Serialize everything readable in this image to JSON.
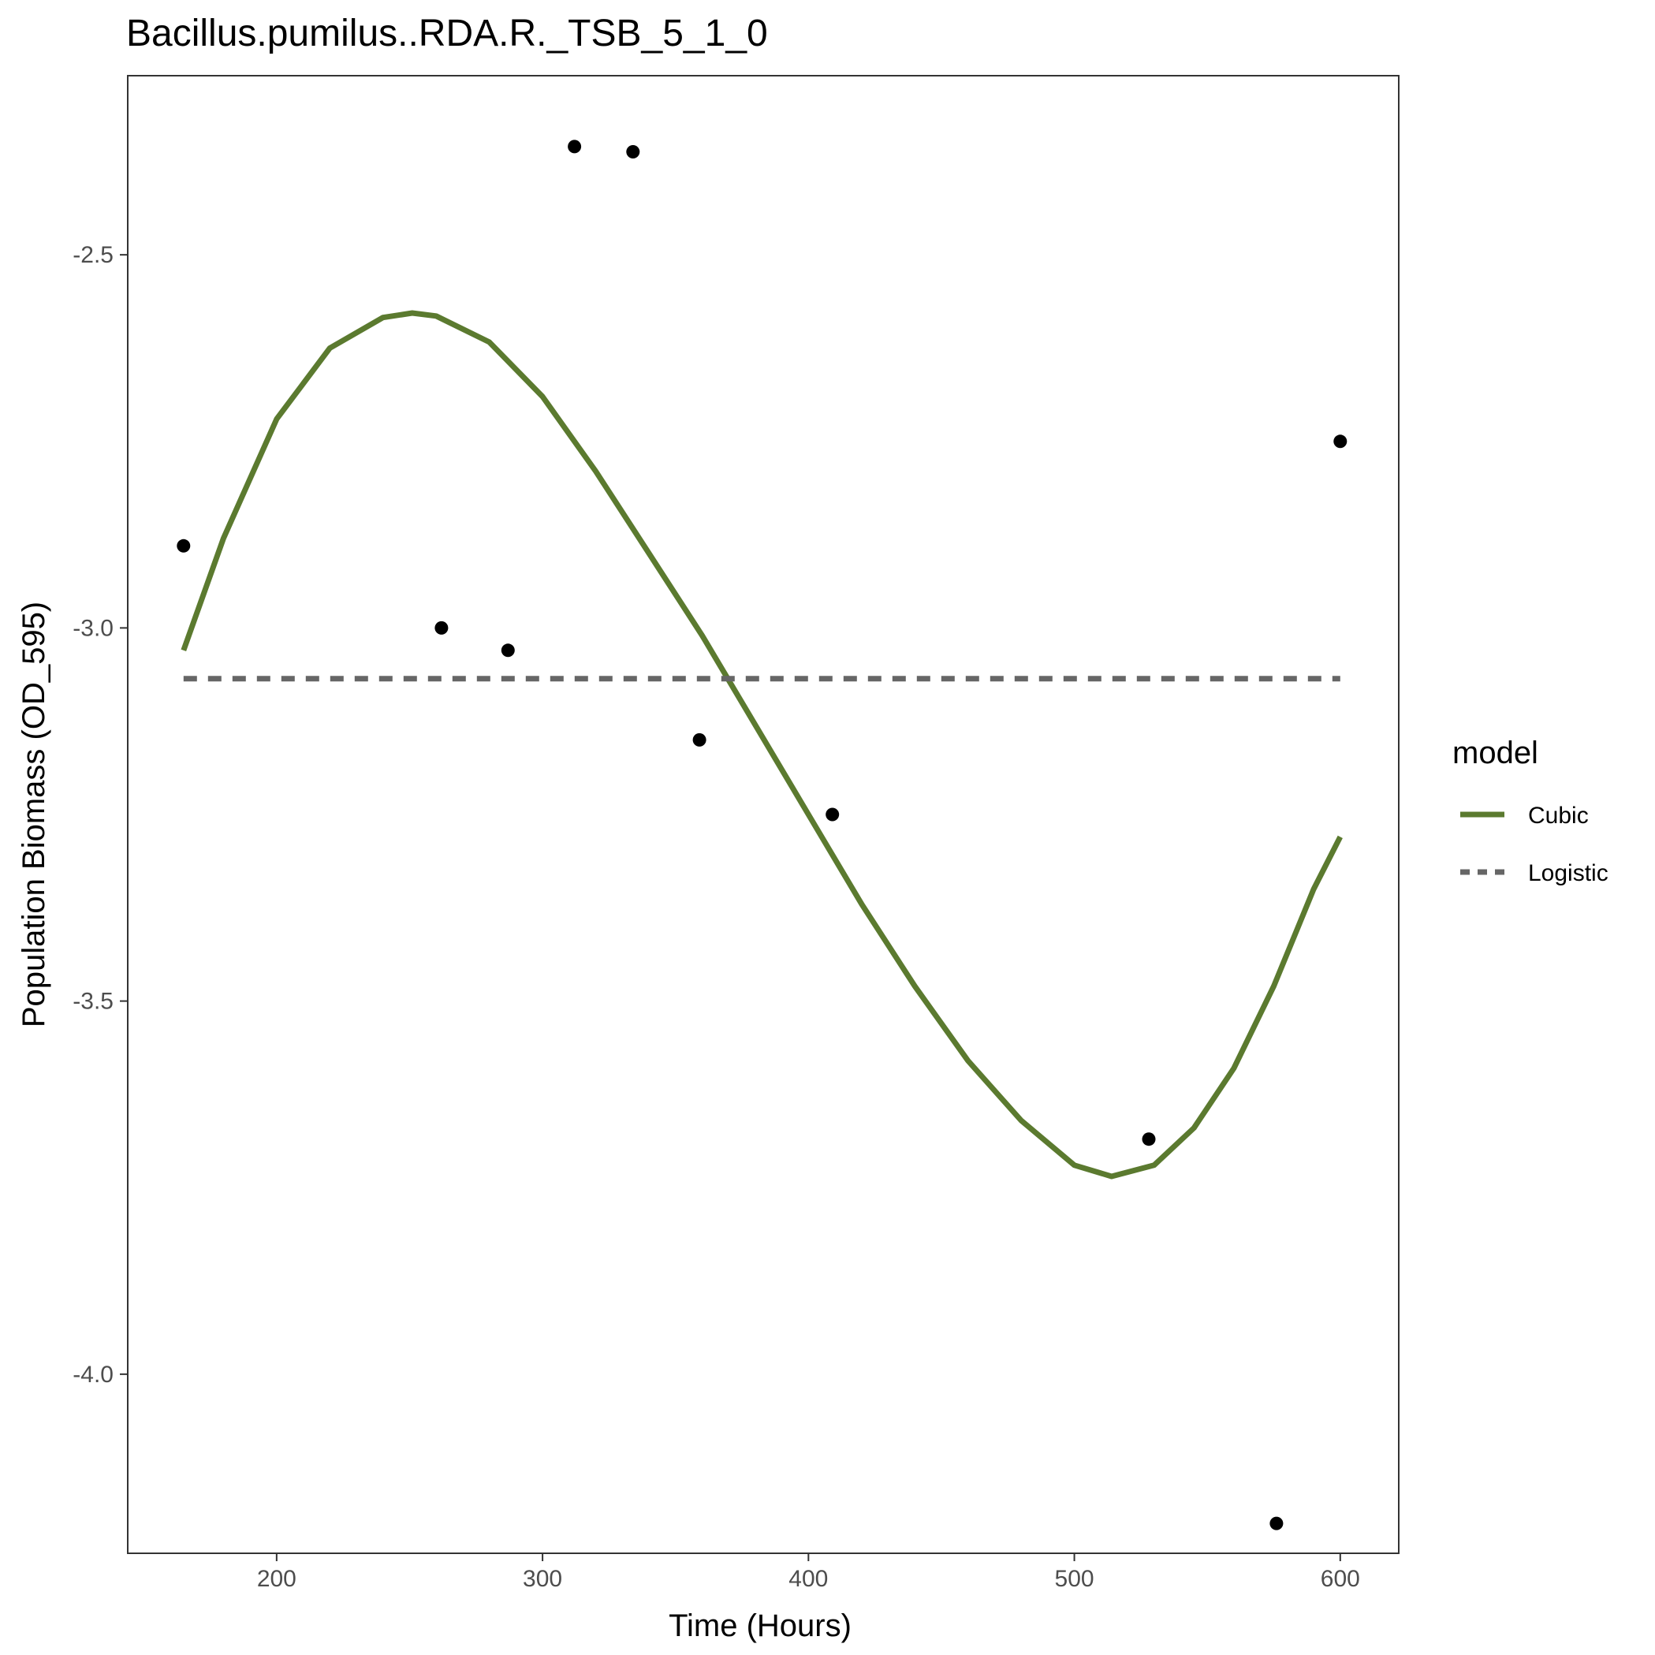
{
  "chart_data": {
    "type": "line",
    "title": "Bacillus.pumilus..RDA.R._TSB_5_1_0",
    "xlabel": "Time (Hours)",
    "ylabel": "Population Biomass (OD_595)",
    "xlim": [
      144,
      622
    ],
    "ylim": [
      -4.24,
      -2.26
    ],
    "xticks": [
      200,
      300,
      400,
      500,
      600
    ],
    "xtick_labels": [
      "200",
      "300",
      "400",
      "500",
      "600"
    ],
    "yticks": [
      -4.0,
      -3.5,
      -3.0,
      -2.5
    ],
    "ytick_labels": [
      "-4.0",
      "-3.5",
      "-3.0",
      "-2.5"
    ],
    "grid": false,
    "legend": {
      "title": "model",
      "position": "right",
      "entries": [
        {
          "label": "Cubic",
          "color": "#5b7a2f",
          "style": "solid"
        },
        {
          "label": "Logistic",
          "color": "#666666",
          "style": "dashed"
        }
      ]
    },
    "points": {
      "color": "#000000",
      "x": [
        165,
        262,
        287,
        312,
        334,
        359,
        409,
        528,
        576,
        600
      ],
      "y": [
        -2.89,
        -3.0,
        -3.03,
        -2.355,
        -2.362,
        -3.15,
        -3.25,
        -3.685,
        -4.2,
        -2.75
      ]
    },
    "series": [
      {
        "name": "Cubic",
        "color": "#5b7a2f",
        "style": "solid",
        "x": [
          165,
          180,
          200,
          220,
          240,
          251,
          260,
          280,
          300,
          320,
          340,
          360,
          380,
          400,
          420,
          440,
          460,
          480,
          500,
          514,
          530,
          545,
          560,
          575,
          590,
          600
        ],
        "y": [
          -3.03,
          -2.88,
          -2.72,
          -2.625,
          -2.584,
          -2.578,
          -2.582,
          -2.617,
          -2.69,
          -2.79,
          -2.9,
          -3.01,
          -3.13,
          -3.25,
          -3.37,
          -3.48,
          -3.58,
          -3.66,
          -3.72,
          -3.735,
          -3.72,
          -3.67,
          -3.59,
          -3.48,
          -3.35,
          -3.28
        ]
      },
      {
        "name": "Logistic",
        "color": "#666666",
        "style": "dashed",
        "x": [
          165,
          600
        ],
        "y": [
          -3.068,
          -3.068
        ]
      }
    ]
  }
}
